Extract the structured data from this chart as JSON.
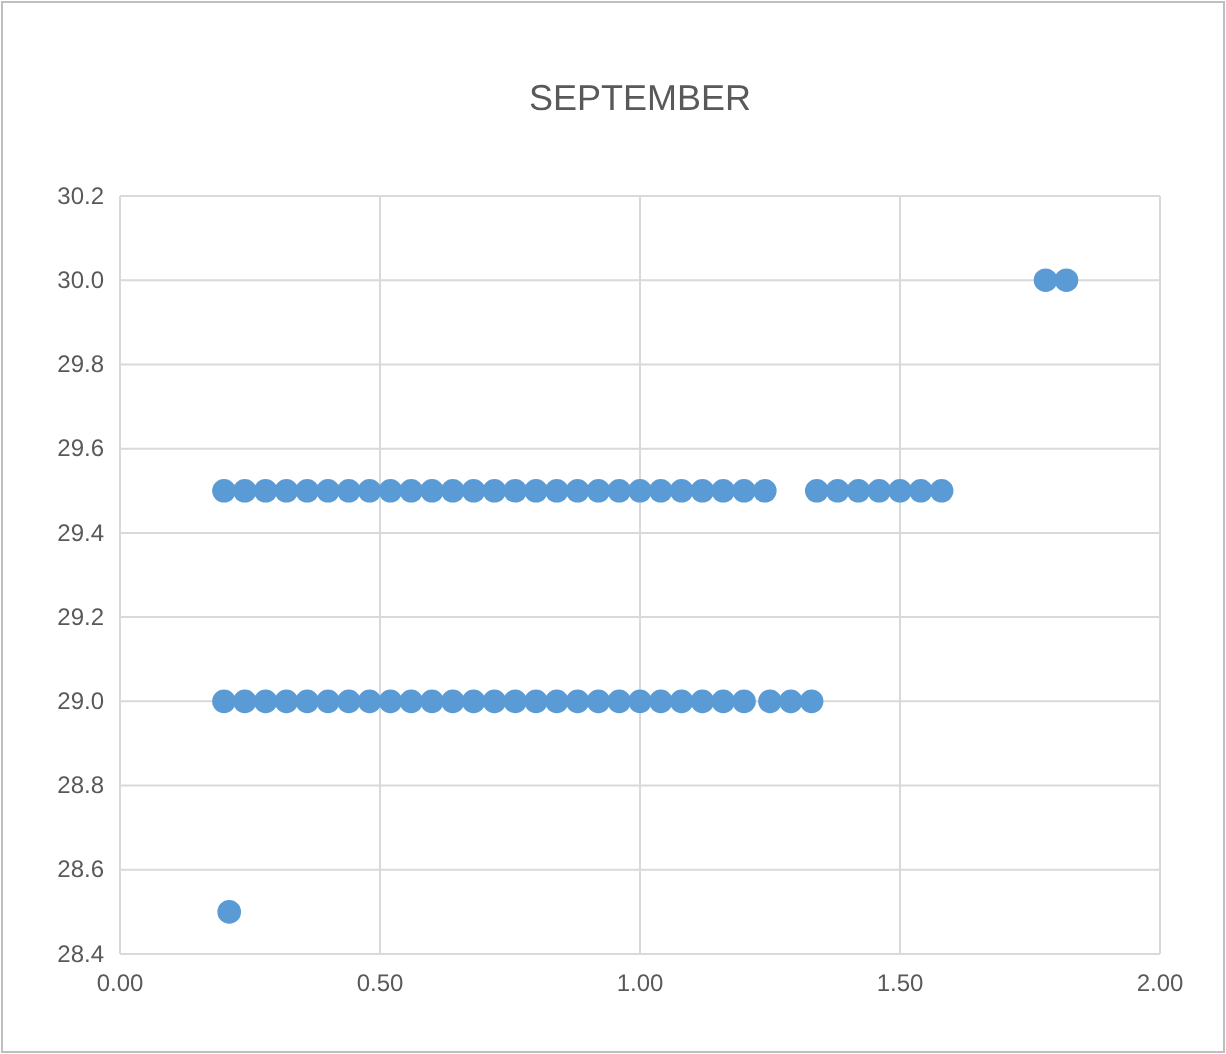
{
  "chart_data": {
    "type": "scatter",
    "title": "SEPTEMBER",
    "color": "#5b9bd5",
    "marker": "circle",
    "grid": true,
    "x": [
      0.2,
      0.24,
      0.28,
      0.32,
      0.36,
      0.4,
      0.44,
      0.48,
      0.52,
      0.56,
      0.6,
      0.64,
      0.68,
      0.72,
      0.76,
      0.8,
      0.84,
      0.88,
      0.92,
      0.96,
      1,
      1.04,
      1.08,
      1.12,
      1.16,
      1.2,
      1.24,
      1.34,
      1.38,
      1.42,
      1.46,
      1.5,
      1.54,
      1.58,
      0.2,
      0.24,
      0.28,
      0.32,
      0.36,
      0.4,
      0.44,
      0.48,
      0.52,
      0.56,
      0.6,
      0.64,
      0.68,
      0.72,
      0.76,
      0.8,
      0.84,
      0.88,
      0.92,
      0.96,
      1,
      1.04,
      1.08,
      1.12,
      1.16,
      1.2,
      1.25,
      1.29,
      1.33,
      1.78,
      1.82,
      0.21
    ],
    "values": [
      29.5,
      29.5,
      29.5,
      29.5,
      29.5,
      29.5,
      29.5,
      29.5,
      29.5,
      29.5,
      29.5,
      29.5,
      29.5,
      29.5,
      29.5,
      29.5,
      29.5,
      29.5,
      29.5,
      29.5,
      29.5,
      29.5,
      29.5,
      29.5,
      29.5,
      29.5,
      29.5,
      29.5,
      29.5,
      29.5,
      29.5,
      29.5,
      29.5,
      29.5,
      29,
      29,
      29,
      29,
      29,
      29,
      29,
      29,
      29,
      29,
      29,
      29,
      29,
      29,
      29,
      29,
      29,
      29,
      29,
      29,
      29,
      29,
      29,
      29,
      29,
      29,
      29,
      29,
      29,
      30,
      30,
      28.5
    ],
    "xlim": [
      0,
      2
    ],
    "xticks": [
      {
        "value": 0,
        "label": "0.00"
      },
      {
        "value": 0.5,
        "label": "0.50"
      },
      {
        "value": 1,
        "label": "1.00"
      },
      {
        "value": 1.5,
        "label": "1.50"
      },
      {
        "value": 2,
        "label": "2.00"
      }
    ],
    "ylim": [
      28.4,
      30.2
    ],
    "yticks": [
      28.4,
      28.6,
      28.8,
      {
        "value": 29,
        "label": "29.0"
      },
      29.2,
      29.4,
      29.6,
      29.8,
      {
        "value": 30,
        "label": "30.0"
      },
      30.2
    ]
  }
}
